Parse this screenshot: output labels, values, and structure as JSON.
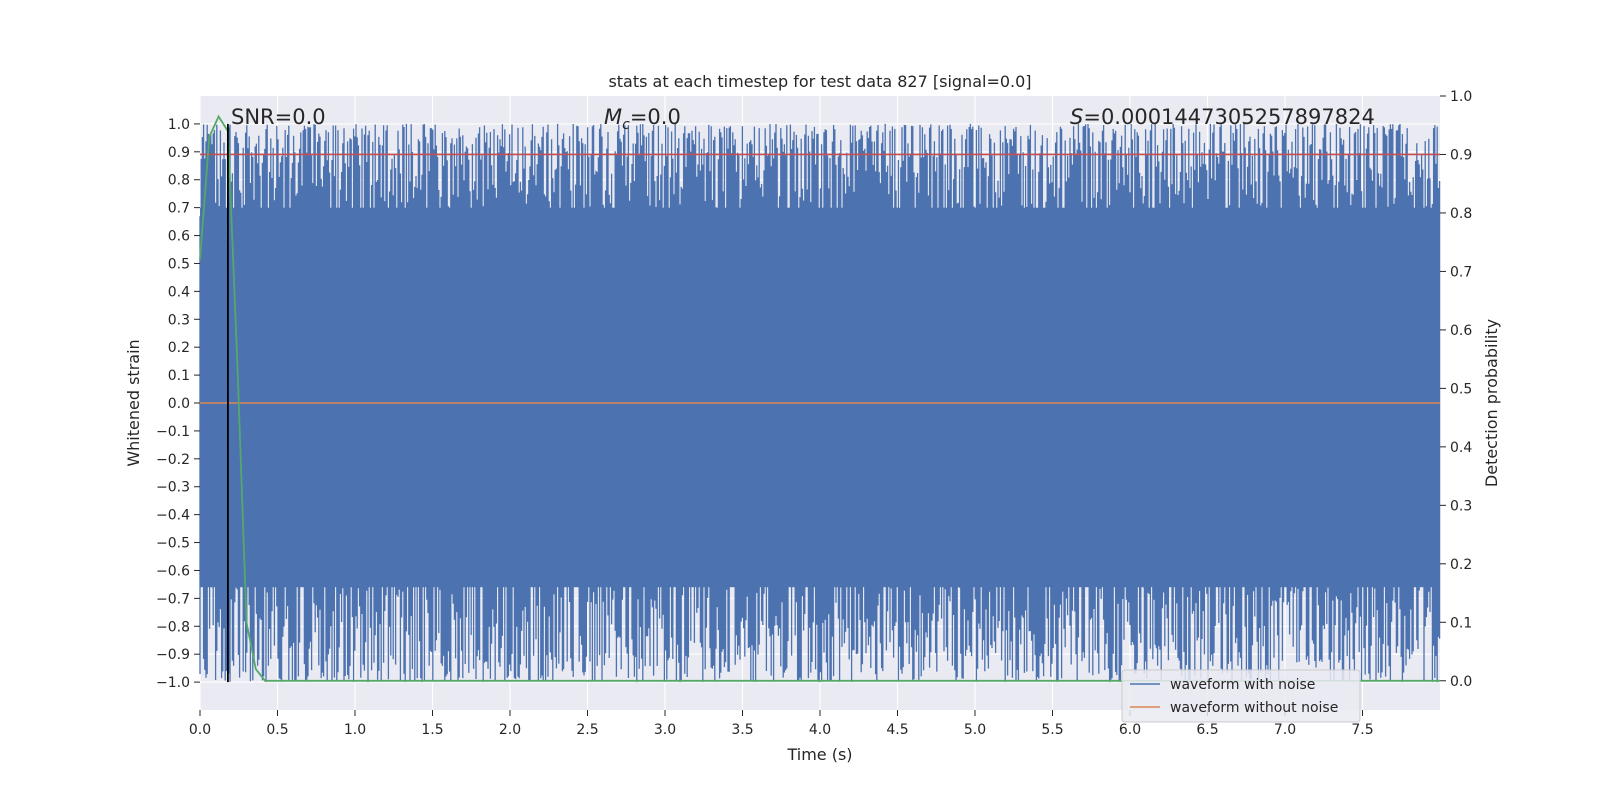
{
  "chart_data": {
    "type": "line",
    "title": "stats at each timestep for test data 827 [signal=0.0]",
    "xlabel": "Time (s)",
    "ylabel_left": "Whitened strain",
    "ylabel_right": "Detection probability",
    "xlim": [
      0.0,
      8.0
    ],
    "ylim_left": [
      -1.1,
      1.1
    ],
    "ylim_right": [
      -0.05,
      1.0
    ],
    "x_ticks": [
      "0.0",
      "0.5",
      "1.0",
      "1.5",
      "2.0",
      "2.5",
      "3.0",
      "3.5",
      "4.0",
      "4.5",
      "5.0",
      "5.5",
      "6.0",
      "6.5",
      "7.0",
      "7.5"
    ],
    "y_left_ticks": [
      "1.0",
      "0.9",
      "0.8",
      "0.7",
      "0.6",
      "0.5",
      "0.4",
      "0.3",
      "0.2",
      "0.1",
      "0.0",
      "−0.1",
      "−0.2",
      "−0.3",
      "−0.4",
      "−0.5",
      "−0.6",
      "−0.7",
      "−0.8",
      "−0.9",
      "−1.0"
    ],
    "y_right_ticks": [
      "1.0",
      "0.9",
      "0.8",
      "0.7",
      "0.6",
      "0.5",
      "0.4",
      "0.3",
      "0.2",
      "0.1",
      "0.0"
    ],
    "annotations": {
      "snr": "SNR=0.0",
      "mc": "M_c=0.0",
      "mc_main": "M",
      "mc_sub": "c",
      "mc_value": "=0.0",
      "s_main": "S",
      "s_value": "=0.0001447305257897824"
    },
    "vertical_marker_x": 0.18,
    "threshold_right": 0.9,
    "series": [
      {
        "name": "waveform with noise",
        "color": "#4c72b0",
        "kind": "noise",
        "range": [
          -1.0,
          1.0
        ]
      },
      {
        "name": "waveform without noise",
        "color": "#dd8452",
        "kind": "flat",
        "value": 0.0
      },
      {
        "name": "detection probability",
        "color": "#55a868",
        "kind": "probability",
        "x": [
          0.0,
          0.06,
          0.12,
          0.18,
          0.24,
          0.3,
          0.36,
          0.42,
          8.0
        ],
        "y": [
          0.72,
          0.93,
          0.965,
          0.94,
          0.55,
          0.1,
          0.02,
          0.0,
          0.0
        ]
      },
      {
        "name": "threshold",
        "color": "#c44e52",
        "kind": "threshold"
      }
    ],
    "legend": {
      "location": "lower-right",
      "entries": [
        "waveform with noise",
        "waveform without noise"
      ]
    },
    "grid": true
  },
  "colors": {
    "axes_bg": "#eaeaf2",
    "grid": "#ffffff",
    "noise": "#4c72b0",
    "clean": "#dd8452",
    "prob": "#55a868",
    "threshold": "#c44e52",
    "marker": "#000000"
  }
}
